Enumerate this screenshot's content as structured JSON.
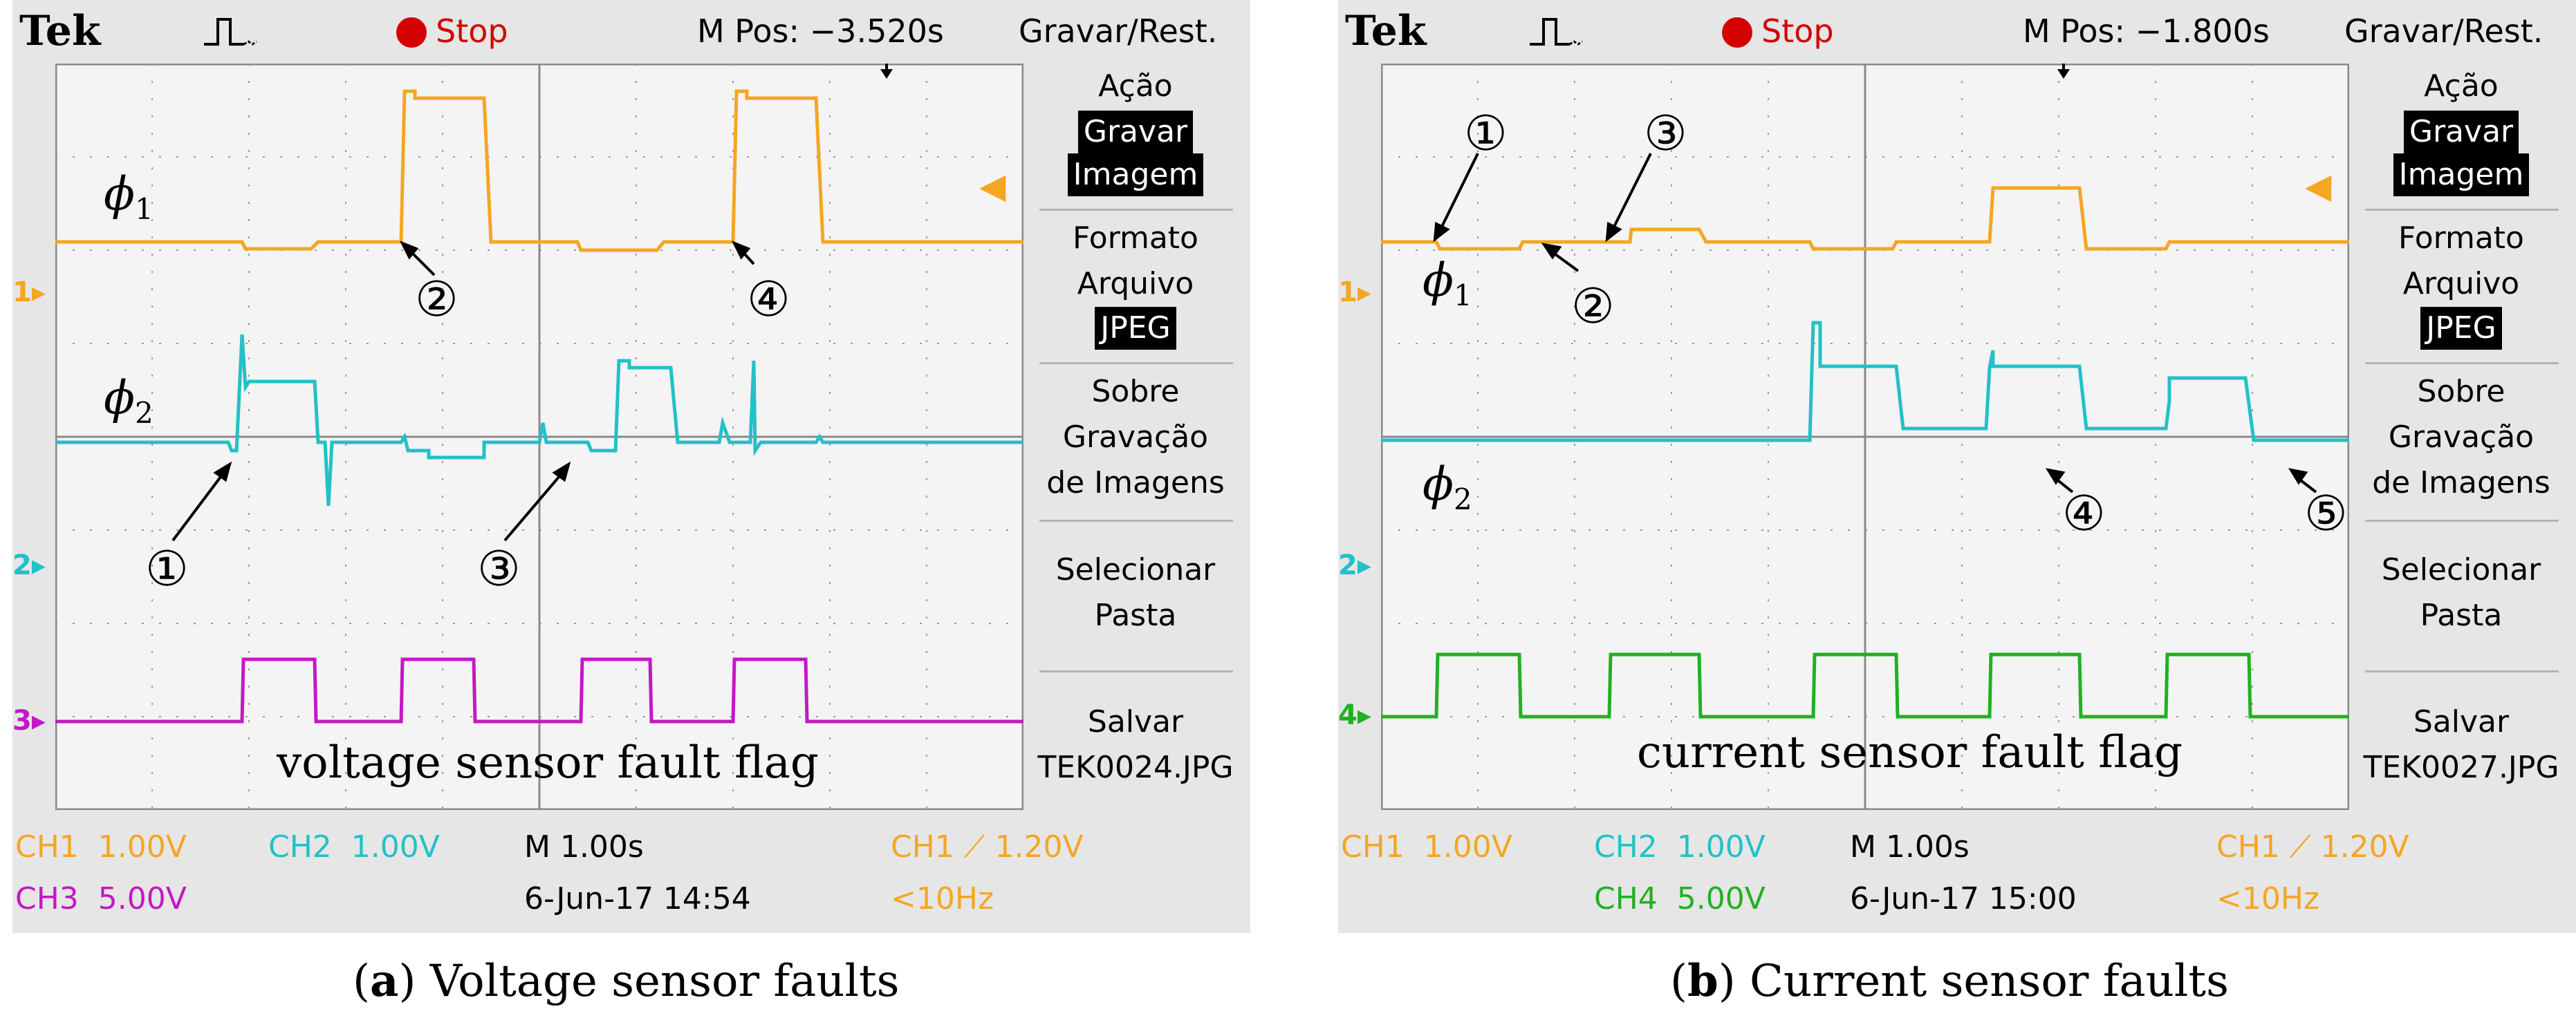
{
  "colors": {
    "ch1": "#f5a623",
    "ch2": "#22c1c7",
    "ch3": "#c418c4",
    "ch4": "#22b022",
    "stop": "#d40000"
  },
  "panels": [
    {
      "logo": "Tek",
      "state": "Stop",
      "mpos": "M Pos: −3.520s",
      "menu_title": "Gravar/Rest.",
      "menu": [
        "Ação",
        "Gravar",
        "Imagem",
        "Formato",
        "Arquivo",
        "JPEG",
        "Sobre",
        "Gravação",
        "de Imagens",
        "Selecionar",
        "Pasta",
        "Salvar",
        "TEK0024.JPG"
      ],
      "markers": [
        "1",
        "2",
        "3"
      ],
      "status": {
        "ch1": "CH1",
        "ch1_scale": "1.00V",
        "ch2": "CH2",
        "ch2_scale": "1.00V",
        "chb": "CH3",
        "chb_scale": "5.00V",
        "time": "M 1.00s",
        "date": "6-Jun-17 14:54",
        "trigger": "CH1 ⟋ 1.20V",
        "freq": "<10Hz"
      },
      "traces": {
        "phi1": {
          "label": "ϕ",
          "sub": "1"
        },
        "phi2": {
          "label": "ϕ",
          "sub": "2"
        }
      },
      "flag_label": "voltage sensor fault flag",
      "annotations": [
        "①",
        "②",
        "③",
        "④"
      ],
      "caption_letter": "a",
      "caption_text": "Voltage sensor faults"
    },
    {
      "logo": "Tek",
      "state": "Stop",
      "mpos": "M Pos: −1.800s",
      "menu_title": "Gravar/Rest.",
      "menu": [
        "Ação",
        "Gravar",
        "Imagem",
        "Formato",
        "Arquivo",
        "JPEG",
        "Sobre",
        "Gravação",
        "de Imagens",
        "Selecionar",
        "Pasta",
        "Salvar",
        "TEK0027.JPG"
      ],
      "markers": [
        "1",
        "2",
        "4"
      ],
      "status": {
        "ch1": "CH1",
        "ch1_scale": "1.00V",
        "ch2": "CH2",
        "ch2_scale": "1.00V",
        "chb": "CH4",
        "chb_scale": "5.00V",
        "time": "M 1.00s",
        "date": "6-Jun-17 15:00",
        "trigger": "CH1 ⟋ 1.20V",
        "freq": "<10Hz"
      },
      "traces": {
        "phi1": {
          "label": "ϕ",
          "sub": "1"
        },
        "phi2": {
          "label": "ϕ",
          "sub": "2"
        }
      },
      "flag_label": "current sensor fault flag",
      "annotations": [
        "①",
        "②",
        "③",
        "④",
        "⑤"
      ],
      "caption_letter": "b",
      "caption_text": "Current sensor faults"
    }
  ]
}
